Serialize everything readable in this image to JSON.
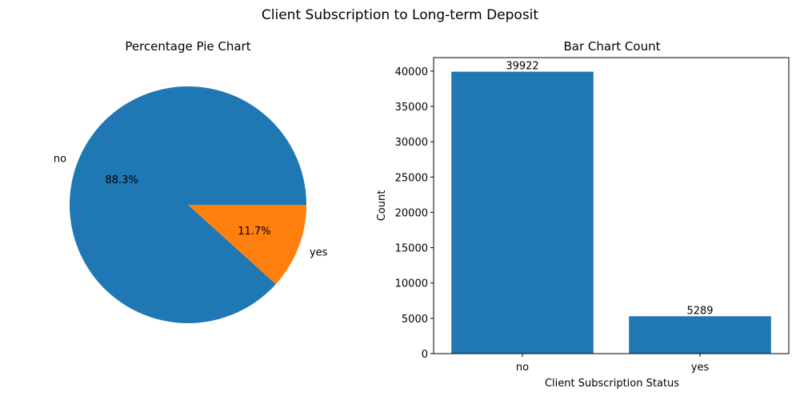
{
  "suptitle": "Client Subscription to Long-term Deposit",
  "colors": {
    "no": "#1f77b4",
    "yes": "#ff7f0e",
    "bar": "#1f77b4"
  },
  "chart_data": [
    {
      "type": "pie",
      "title": "Percentage Pie Chart",
      "labels": [
        "no",
        "yes"
      ],
      "values": [
        88.3,
        11.7
      ],
      "pct_labels": [
        "88.3%",
        "11.7%"
      ]
    },
    {
      "type": "bar",
      "title": "Bar Chart Count",
      "categories": [
        "no",
        "yes"
      ],
      "values": [
        39922,
        5289
      ],
      "value_labels": [
        "39922",
        "5289"
      ],
      "xlabel": "Client Subscription Status",
      "ylabel": "Count",
      "ylim": [
        0,
        41918
      ],
      "yticks": [
        0,
        5000,
        10000,
        15000,
        20000,
        25000,
        30000,
        35000,
        40000
      ],
      "ytick_labels": [
        "0",
        "5000",
        "10000",
        "15000",
        "20000",
        "25000",
        "30000",
        "35000",
        "40000"
      ]
    }
  ]
}
